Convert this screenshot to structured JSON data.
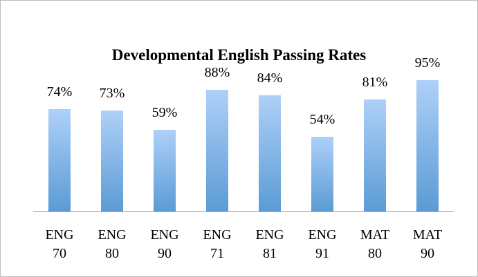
{
  "chart_data": {
    "type": "bar",
    "title": "Developmental English Passing Rates",
    "categories": [
      "ENG 70",
      "ENG 80",
      "ENG 90",
      "ENG 71",
      "ENG 81",
      "ENG 91",
      "MAT 80",
      "MAT 90"
    ],
    "values": [
      74,
      73,
      59,
      88,
      84,
      54,
      81,
      95
    ],
    "value_labels": [
      "74%",
      "73%",
      "59%",
      "88%",
      "84%",
      "54%",
      "81%",
      "95%"
    ],
    "color": "#5b9bd5"
  }
}
